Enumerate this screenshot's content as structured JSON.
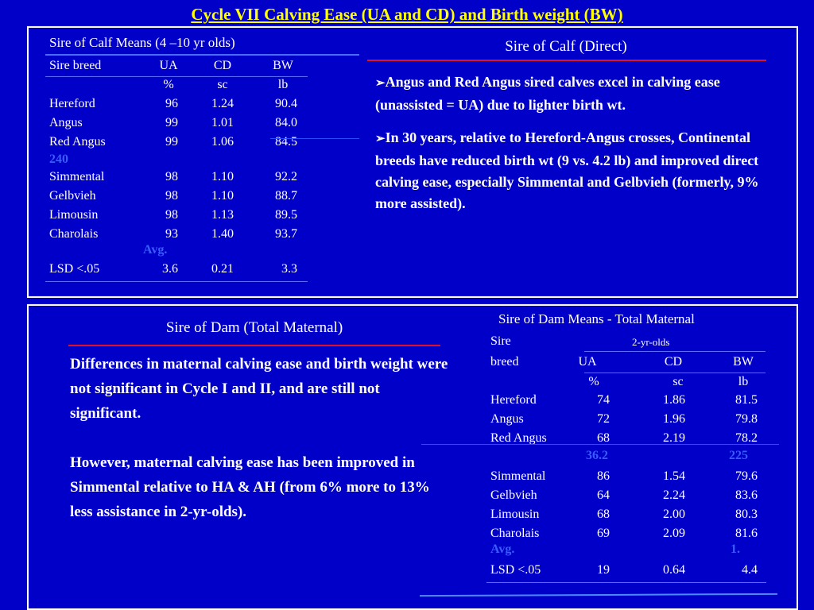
{
  "title": "Cycle VII Calving Ease (UA and CD) and  Birth weight (BW)",
  "calf_table": {
    "caption": "Sire of Calf Means (4 –10 yr olds)",
    "headers": [
      "Sire breed",
      "UA",
      "CD",
      "BW"
    ],
    "units": [
      "",
      "%",
      "sc",
      "lb"
    ],
    "rows": [
      [
        "Hereford",
        "96",
        "1.24",
        "90.4"
      ],
      [
        "Angus",
        "99",
        "1.01",
        "84.0"
      ],
      [
        "Red Angus",
        "99",
        "1.06",
        "84.5"
      ],
      [
        "Simmental",
        "98",
        "1.10",
        "92.2"
      ],
      [
        "Gelbvieh",
        "98",
        "1.10",
        "88.7"
      ],
      [
        "Limousin",
        "98",
        "1.13",
        "89.5"
      ],
      [
        "Charolais",
        "93",
        "1.40",
        "93.7"
      ]
    ],
    "ghost_240": "240",
    "ghost_avg": "Avg.",
    "lsd": [
      "LSD <.05",
      "3.6",
      "0.21",
      "3.3"
    ]
  },
  "direct": {
    "heading": "Sire of Calf (Direct)",
    "bullet_symbol": "➢",
    "bullets": [
      "Angus and Red Angus sired calves excel in calving ease (unassisted = UA) due to lighter birth wt.",
      "In 30 years, relative to Hereford-Angus crosses, Continental breeds have reduced birth wt (9 vs. 4.2 lb) and improved direct calving ease, especially Simmental and Gelbvieh (formerly, 9% more assisted)."
    ]
  },
  "maternal": {
    "heading": "Sire of Dam (Total Maternal)",
    "paragraphs": [
      "Differences in maternal calving ease and birth weight were not significant  in Cycle I and II, and are still not significant.",
      "However, maternal calving ease has been improved in Simmental relative to HA & AH (from 6% more to 13% less assistance in 2-yr-olds)."
    ]
  },
  "dam_table": {
    "caption": "Sire of Dam Means - Total Maternal",
    "header1": [
      "Sire",
      "2-yr-olds"
    ],
    "headers": [
      "breed",
      "UA",
      "CD",
      "BW"
    ],
    "units": [
      "",
      "%",
      "sc",
      "lb"
    ],
    "rows": [
      [
        "Hereford",
        "74",
        "1.86",
        "81.5"
      ],
      [
        "Angus",
        "72",
        "1.96",
        "79.8"
      ],
      [
        "Red Angus",
        "68",
        "2.19",
        "78.2"
      ],
      [
        "Simmental",
        "86",
        "1.54",
        "79.6"
      ],
      [
        "Gelbvieh",
        "64",
        "2.24",
        "83.6"
      ],
      [
        "Limousin",
        "68",
        "2.00",
        "80.3"
      ],
      [
        "Charolais",
        "69",
        "2.09",
        "81.6"
      ]
    ],
    "ghost_a": "36.2",
    "ghost_b": "225",
    "ghost_avg": "Avg.",
    "ghost_c": "1.",
    "lsd": [
      "LSD <.05",
      "19",
      "0.64",
      "4.4"
    ]
  },
  "colors": {
    "background": "#0000c8",
    "title": "#ffff00",
    "rule_red": "#e0102a",
    "rule_blue": "#4a6cff"
  }
}
